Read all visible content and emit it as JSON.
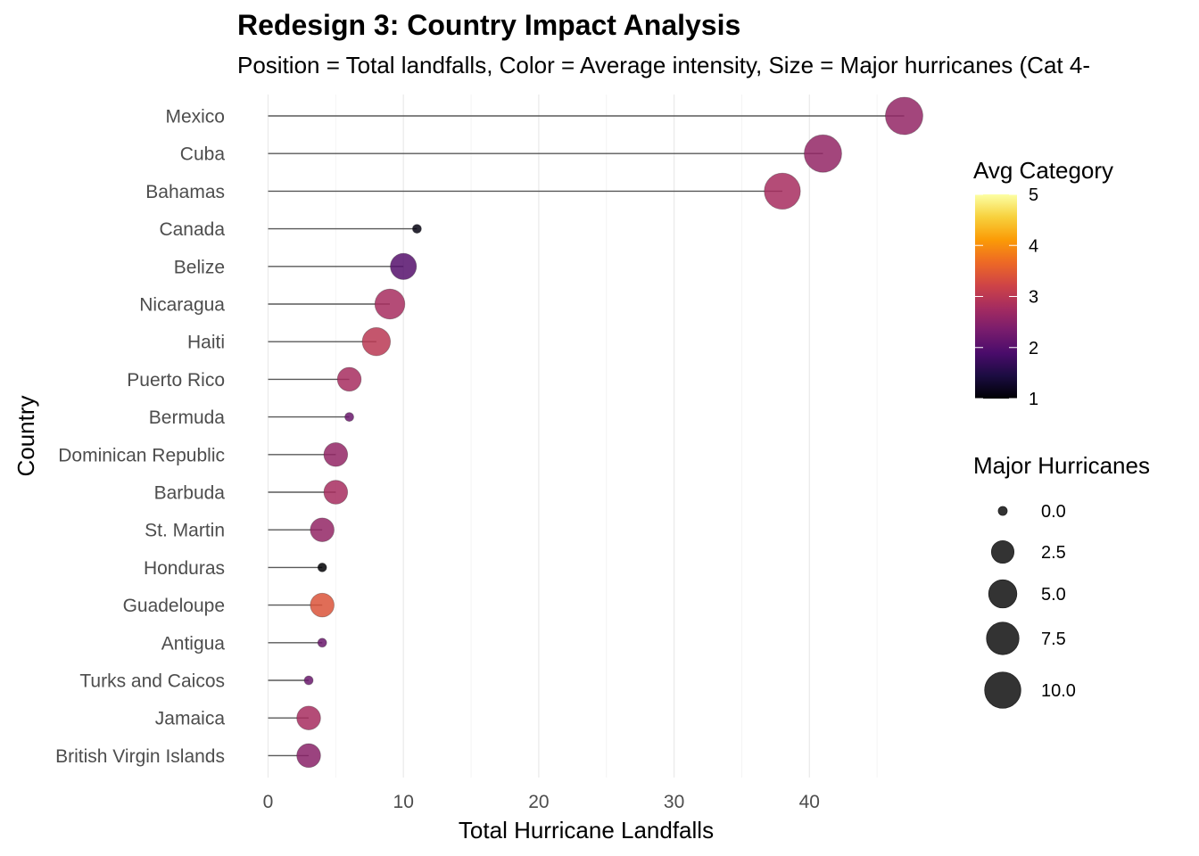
{
  "chart_data": {
    "type": "scatter",
    "title": "Redesign 3: Country Impact Analysis",
    "subtitle": "Position = Total landfalls, Color = Average intensity, Size = Major hurricanes (Cat 4-",
    "xlabel": "Total Hurricane Landfalls",
    "ylabel": "Country",
    "xlim": [
      0,
      47
    ],
    "x_ticks": [
      0,
      10,
      20,
      30,
      40
    ],
    "grid": "vertical",
    "color_legend": {
      "title": "Avg Category",
      "min": 1,
      "max": 5,
      "ticks": [
        1,
        2,
        3,
        4,
        5
      ],
      "colors": [
        "#000004",
        "#1b0c41",
        "#4a0c6b",
        "#781c6d",
        "#a52c60",
        "#cf4446",
        "#ed6925",
        "#fb9b06",
        "#f7d13d",
        "#fcffa4"
      ]
    },
    "size_legend": {
      "title": "Major Hurricanes",
      "values": [
        0.0,
        2.5,
        5.0,
        7.5,
        10.0
      ],
      "labels": [
        "0.0",
        "2.5",
        "5.0",
        "7.5",
        "10.0"
      ]
    },
    "countries": [
      {
        "name": "Mexico",
        "total": 47,
        "avg_category": 2.6,
        "major": 11
      },
      {
        "name": "Cuba",
        "total": 41,
        "avg_category": 2.6,
        "major": 11
      },
      {
        "name": "Bahamas",
        "total": 38,
        "avg_category": 2.8,
        "major": 10
      },
      {
        "name": "Canada",
        "total": 11,
        "avg_category": 1.1,
        "major": 0
      },
      {
        "name": "Belize",
        "total": 10,
        "avg_category": 2.0,
        "major": 4
      },
      {
        "name": "Nicaragua",
        "total": 9,
        "avg_category": 2.8,
        "major": 6
      },
      {
        "name": "Haiti",
        "total": 8,
        "avg_category": 3.0,
        "major": 5
      },
      {
        "name": "Puerto Rico",
        "total": 6,
        "avg_category": 2.8,
        "major": 3
      },
      {
        "name": "Bermuda",
        "total": 6,
        "avg_category": 2.2,
        "major": 0
      },
      {
        "name": "Dominican Republic",
        "total": 5,
        "avg_category": 2.6,
        "major": 3
      },
      {
        "name": "Barbuda",
        "total": 5,
        "avg_category": 2.8,
        "major": 3
      },
      {
        "name": "St. Martin",
        "total": 4,
        "avg_category": 2.6,
        "major": 3
      },
      {
        "name": "Honduras",
        "total": 4,
        "avg_category": 1.0,
        "major": 0
      },
      {
        "name": "Guadeloupe",
        "total": 4,
        "avg_category": 3.4,
        "major": 3
      },
      {
        "name": "Antigua",
        "total": 4,
        "avg_category": 2.2,
        "major": 0
      },
      {
        "name": "Turks and Caicos",
        "total": 3,
        "avg_category": 2.2,
        "major": 0
      },
      {
        "name": "Jamaica",
        "total": 3,
        "avg_category": 2.8,
        "major": 3
      },
      {
        "name": "British Virgin Islands",
        "total": 3,
        "avg_category": 2.5,
        "major": 3
      }
    ]
  }
}
